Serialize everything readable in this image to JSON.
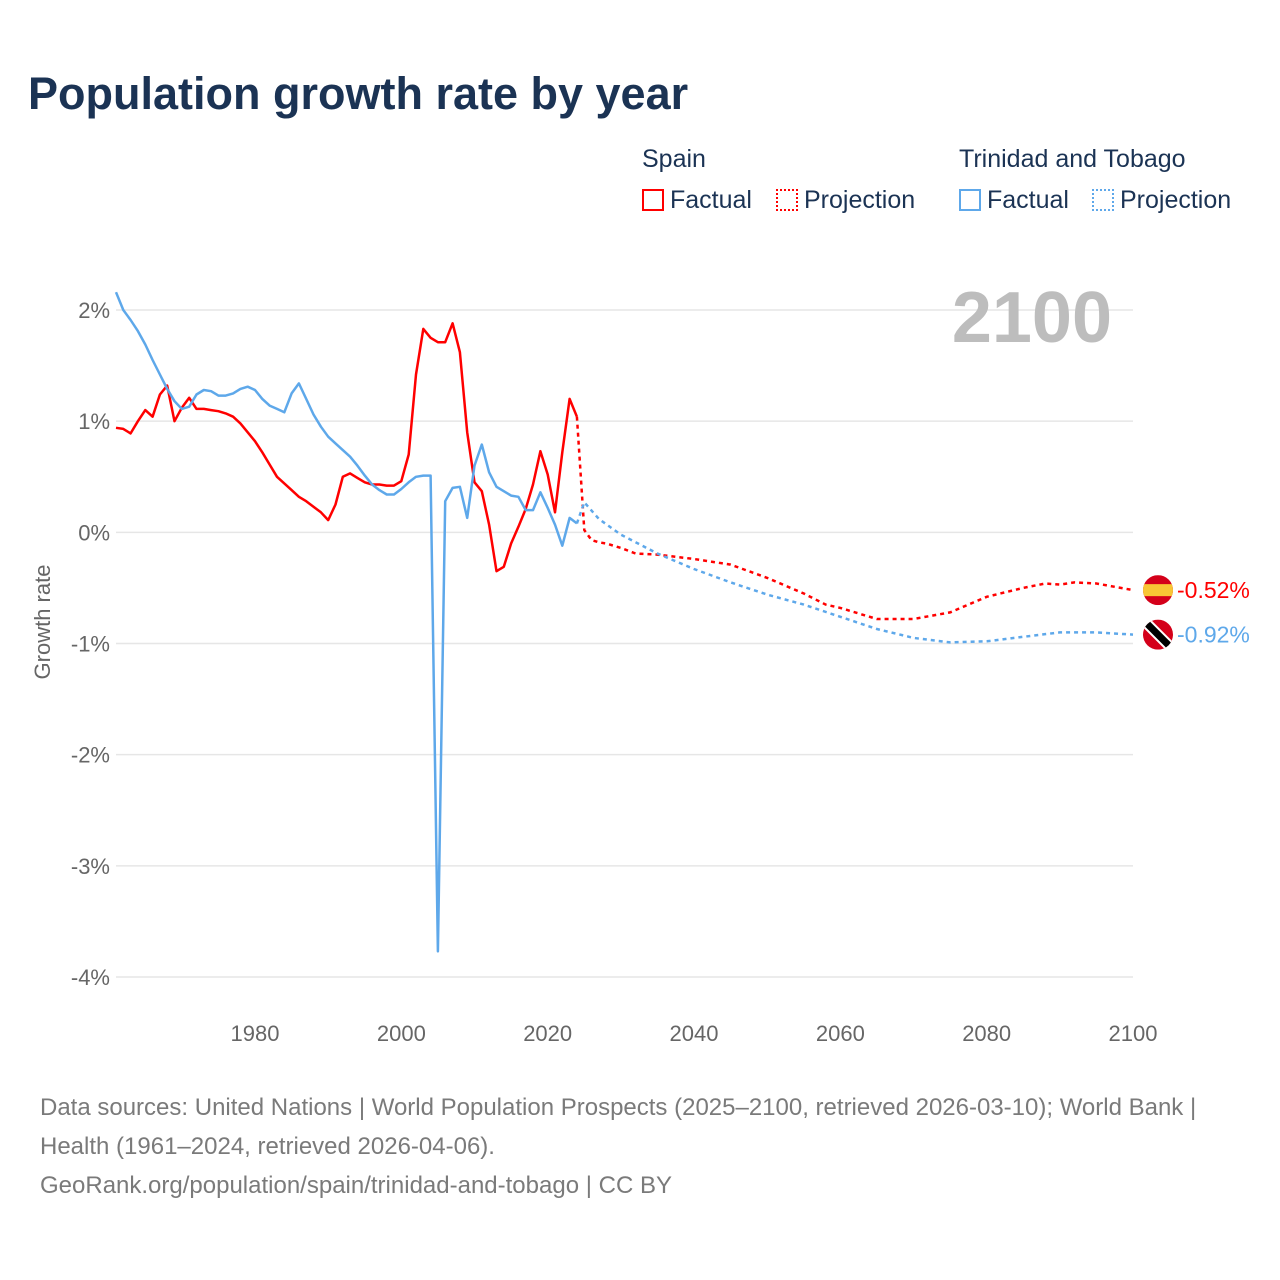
{
  "chart_data": {
    "type": "line",
    "title": "Population growth rate by year",
    "ylabel": "Growth rate",
    "xlim": [
      1961,
      2100
    ],
    "ylim": [
      -4,
      2
    ],
    "yticks": [
      {
        "v": 2,
        "label": "2%"
      },
      {
        "v": 1,
        "label": "1%"
      },
      {
        "v": 0,
        "label": "0%"
      },
      {
        "v": -1,
        "label": "-1%"
      },
      {
        "v": -2,
        "label": "-2%"
      },
      {
        "v": -3,
        "label": "-3%"
      },
      {
        "v": -4,
        "label": "-4%"
      }
    ],
    "xticks": [
      {
        "v": 1980,
        "label": "1980"
      },
      {
        "v": 2000,
        "label": "2000"
      },
      {
        "v": 2020,
        "label": "2020"
      },
      {
        "v": 2040,
        "label": "2040"
      },
      {
        "v": 2060,
        "label": "2060"
      },
      {
        "v": 2080,
        "label": "2080"
      },
      {
        "v": 2100,
        "label": "2100"
      }
    ],
    "year_label": "2100",
    "legend": {
      "groups": [
        {
          "name": "Spain",
          "factual": "Factual",
          "projection": "Projection"
        },
        {
          "name": "Trinidad and Tobago",
          "factual": "Factual",
          "projection": "Projection"
        }
      ]
    },
    "series": [
      {
        "name": "Spain",
        "color": "#ff0000",
        "end_label": "-0.52%",
        "factual": {
          "x": [
            1961,
            1962,
            1963,
            1964,
            1965,
            1966,
            1967,
            1968,
            1969,
            1970,
            1971,
            1972,
            1973,
            1974,
            1975,
            1976,
            1977,
            1978,
            1979,
            1980,
            1981,
            1982,
            1983,
            1984,
            1985,
            1986,
            1987,
            1988,
            1989,
            1990,
            1991,
            1992,
            1993,
            1994,
            1995,
            1996,
            1997,
            1998,
            1999,
            2000,
            2001,
            2002,
            2003,
            2004,
            2005,
            2006,
            2007,
            2008,
            2009,
            2010,
            2011,
            2012,
            2013,
            2014,
            2015,
            2016,
            2017,
            2018,
            2019,
            2020,
            2021,
            2022,
            2023,
            2024
          ],
          "y": [
            0.94,
            0.93,
            0.89,
            1.0,
            1.1,
            1.04,
            1.24,
            1.32,
            1.0,
            1.12,
            1.21,
            1.11,
            1.11,
            1.1,
            1.09,
            1.07,
            1.04,
            0.98,
            0.9,
            0.82,
            0.72,
            0.61,
            0.5,
            0.44,
            0.38,
            0.32,
            0.28,
            0.23,
            0.18,
            0.11,
            0.25,
            0.5,
            0.53,
            0.49,
            0.45,
            0.43,
            0.43,
            0.42,
            0.42,
            0.46,
            0.7,
            1.42,
            1.83,
            1.75,
            1.71,
            1.71,
            1.88,
            1.62,
            0.9,
            0.45,
            0.37,
            0.07,
            -0.35,
            -0.31,
            -0.1,
            0.05,
            0.21,
            0.43,
            0.73,
            0.52,
            0.18,
            0.72,
            1.2,
            1.04
          ]
        },
        "projection": {
          "x": [
            2024,
            2025,
            2026,
            2027,
            2028,
            2030,
            2032,
            2035,
            2040,
            2045,
            2050,
            2055,
            2058,
            2060,
            2065,
            2070,
            2075,
            2080,
            2085,
            2088,
            2090,
            2092,
            2095,
            2100
          ],
          "y": [
            1.04,
            0.02,
            -0.07,
            -0.09,
            -0.1,
            -0.14,
            -0.19,
            -0.2,
            -0.24,
            -0.29,
            -0.41,
            -0.55,
            -0.65,
            -0.68,
            -0.78,
            -0.78,
            -0.72,
            -0.58,
            -0.5,
            -0.46,
            -0.47,
            -0.45,
            -0.46,
            -0.52
          ]
        }
      },
      {
        "name": "Trinidad and Tobago",
        "color": "#5ea8ea",
        "end_label": "-0.92%",
        "factual": {
          "x": [
            1961,
            1962,
            1963,
            1964,
            1965,
            1966,
            1967,
            1968,
            1969,
            1970,
            1971,
            1972,
            1973,
            1974,
            1975,
            1976,
            1977,
            1978,
            1979,
            1980,
            1981,
            1982,
            1983,
            1984,
            1985,
            1986,
            1987,
            1988,
            1989,
            1990,
            1991,
            1992,
            1993,
            1994,
            1995,
            1996,
            1997,
            1998,
            1999,
            2000,
            2001,
            2002,
            2003,
            2004,
            2005,
            2006,
            2007,
            2008,
            2009,
            2010,
            2011,
            2012,
            2013,
            2014,
            2015,
            2016,
            2017,
            2018,
            2019,
            2020,
            2021,
            2022,
            2023,
            2024
          ],
          "y": [
            2.16,
            2.0,
            1.91,
            1.81,
            1.69,
            1.55,
            1.42,
            1.29,
            1.18,
            1.11,
            1.13,
            1.24,
            1.28,
            1.27,
            1.23,
            1.23,
            1.25,
            1.29,
            1.31,
            1.28,
            1.2,
            1.14,
            1.11,
            1.08,
            1.25,
            1.34,
            1.2,
            1.06,
            0.95,
            0.86,
            0.8,
            0.74,
            0.68,
            0.6,
            0.51,
            0.43,
            0.38,
            0.34,
            0.34,
            0.39,
            0.45,
            0.5,
            0.51,
            0.51,
            -3.77,
            0.28,
            0.4,
            0.41,
            0.13,
            0.6,
            0.79,
            0.54,
            0.41,
            0.37,
            0.33,
            0.32,
            0.2,
            0.2,
            0.36,
            0.22,
            0.07,
            -0.12,
            0.13,
            0.08
          ]
        },
        "projection": {
          "x": [
            2024,
            2025,
            2027,
            2030,
            2035,
            2040,
            2045,
            2050,
            2055,
            2060,
            2065,
            2070,
            2075,
            2080,
            2085,
            2090,
            2095,
            2100
          ],
          "y": [
            0.08,
            0.27,
            0.12,
            -0.02,
            -0.19,
            -0.33,
            -0.45,
            -0.56,
            -0.65,
            -0.76,
            -0.87,
            -0.95,
            -0.99,
            -0.98,
            -0.94,
            -0.9,
            -0.9,
            -0.92
          ]
        }
      }
    ]
  },
  "sources": {
    "line1": "Data sources: United Nations | World Population Prospects (2025–2100, retrieved 2026-03-10); World Bank | Health (1961–2024, retrieved 2026-04-06).",
    "line2": "GeoRank.org/population/spain/trinidad-and-tobago | CC BY"
  }
}
